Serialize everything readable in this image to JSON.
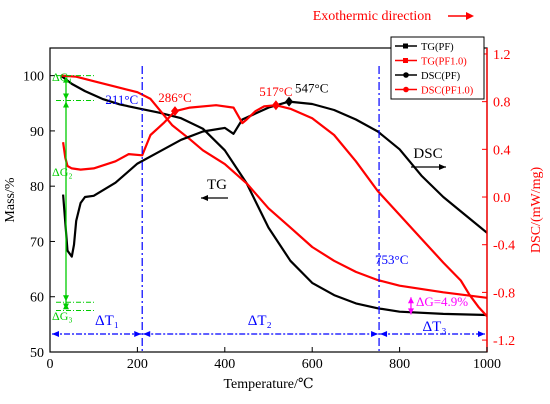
{
  "chart_data": {
    "type": "line",
    "title": "",
    "top_annotation": "Exothermic direction",
    "top_arrow_icon": "arrow-right-icon",
    "xlabel": "Temperature/℃",
    "ylabel_left": "Mass/%",
    "ylabel_right": "DSC/(mW/mg)",
    "xlim": [
      0,
      1000
    ],
    "ylim_left": [
      50,
      105
    ],
    "ylim_right": [
      -1.3,
      1.25
    ],
    "x_ticks": [
      "0",
      "200",
      "400",
      "600",
      "800",
      "1000"
    ],
    "y_left_ticks": [
      "50",
      "60",
      "70",
      "80",
      "90",
      "100"
    ],
    "y_right_ticks": [
      "-1.2",
      "-0.8",
      "-0.4",
      "0.0",
      "0.4",
      "0.8",
      "1.2"
    ],
    "colors": {
      "black": "#000000",
      "red": "#ff0000",
      "blue": "#0000ff",
      "green": "#00cc00",
      "magenta": "#ff00ff"
    },
    "series": [
      {
        "name": "TG(PF)",
        "color": "#000000",
        "axis": "left",
        "marker": "square",
        "x": [
          25,
          50,
          80,
          120,
          160,
          200,
          250,
          300,
          350,
          400,
          450,
          500,
          550,
          600,
          650,
          700,
          750,
          800,
          900,
          1000
        ],
        "y": [
          100,
          98.5,
          97.2,
          95.8,
          94.8,
          94.1,
          93.3,
          92.3,
          90.4,
          86.5,
          80.5,
          72.5,
          66.5,
          62.5,
          60.3,
          58.8,
          57.9,
          57.3,
          56.9,
          56.7
        ]
      },
      {
        "name": "TG(PF1.0)",
        "color": "#ff0000",
        "axis": "left",
        "marker": "square",
        "x": [
          25,
          60,
          100,
          150,
          200,
          230,
          280,
          320,
          350,
          400,
          450,
          500,
          550,
          600,
          650,
          700,
          750,
          800,
          900,
          1000
        ],
        "y": [
          100,
          99.8,
          99,
          98,
          97,
          95.8,
          91,
          88.5,
          86.5,
          84,
          80.5,
          76,
          72.5,
          69,
          66.5,
          64.5,
          63,
          62,
          60.8,
          59.8
        ]
      },
      {
        "name": "DSC(PF)",
        "color": "#000000",
        "axis": "right",
        "marker": "circle",
        "x": [
          30,
          40,
          50,
          55,
          60,
          70,
          80,
          100,
          150,
          200,
          250,
          300,
          350,
          400,
          420,
          440,
          500,
          547,
          600,
          650,
          700,
          750,
          800,
          850,
          900,
          950,
          1000
        ],
        "y": [
          0.02,
          -0.45,
          -0.5,
          -0.4,
          -0.2,
          -0.05,
          0.0,
          0.01,
          0.12,
          0.28,
          0.38,
          0.48,
          0.55,
          0.58,
          0.53,
          0.65,
          0.75,
          0.8,
          0.78,
          0.73,
          0.65,
          0.55,
          0.4,
          0.18,
          0.0,
          -0.15,
          -0.3
        ]
      },
      {
        "name": "DSC(PF1.0)",
        "color": "#ff0000",
        "axis": "right",
        "marker": "circle",
        "x": [
          30,
          35,
          40,
          50,
          70,
          100,
          150,
          180,
          211,
          230,
          260,
          286,
          320,
          380,
          420,
          440,
          450,
          470,
          490,
          517,
          550,
          600,
          650,
          700,
          750,
          800,
          850,
          900,
          940,
          960,
          980,
          1000
        ],
        "y": [
          0.46,
          0.33,
          0.26,
          0.24,
          0.23,
          0.24,
          0.3,
          0.36,
          0.35,
          0.52,
          0.62,
          0.72,
          0.75,
          0.77,
          0.75,
          0.62,
          0.65,
          0.72,
          0.76,
          0.77,
          0.74,
          0.66,
          0.52,
          0.3,
          0.05,
          -0.15,
          -0.35,
          -0.55,
          -0.7,
          -0.82,
          -0.92,
          -1.0
        ]
      }
    ],
    "legend": {
      "placement": "top-right",
      "entries": [
        "TG(PF)",
        "TG(PF1.0)",
        "DSC(PF)",
        "DSC(PF1.0)"
      ]
    },
    "annotations": {
      "peak_286": {
        "label": "286°C",
        "x": 286,
        "y": 0.72,
        "axis": "right",
        "color": "#ff0000"
      },
      "peak_517": {
        "label": "517°C",
        "x": 517,
        "y": 0.77,
        "axis": "right",
        "color": "#ff0000"
      },
      "peak_547": {
        "label": "547°C",
        "x": 547,
        "y": 0.8,
        "axis": "right",
        "color": "#000000"
      },
      "t211": {
        "label": "211°C",
        "x": 211
      },
      "t753": {
        "label": "753°C",
        "x": 753
      },
      "tg_label": "TG",
      "dsc_label": "DSC",
      "delta_g1": "ΔG₁",
      "delta_g2": "ΔG₂",
      "delta_g3": "ΔG₃",
      "delta_t1": "ΔT₁",
      "delta_t2": "ΔT₂",
      "delta_t3": "ΔT₃",
      "delta_g_49": "ΔG=4.9%"
    }
  }
}
